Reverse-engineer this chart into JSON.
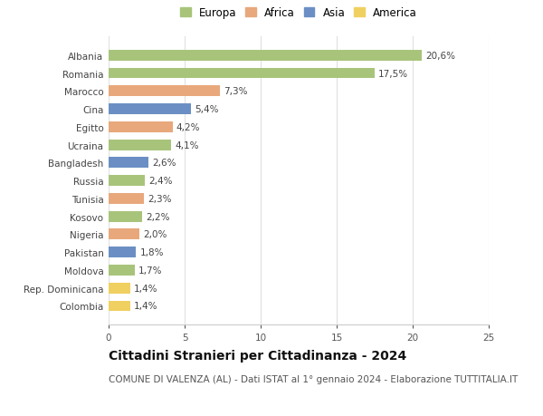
{
  "countries": [
    "Albania",
    "Romania",
    "Marocco",
    "Cina",
    "Egitto",
    "Ucraina",
    "Bangladesh",
    "Russia",
    "Tunisia",
    "Kosovo",
    "Nigeria",
    "Pakistan",
    "Moldova",
    "Rep. Dominicana",
    "Colombia"
  ],
  "values": [
    20.6,
    17.5,
    7.3,
    5.4,
    4.2,
    4.1,
    2.6,
    2.4,
    2.3,
    2.2,
    2.0,
    1.8,
    1.7,
    1.4,
    1.4
  ],
  "labels": [
    "20,6%",
    "17,5%",
    "7,3%",
    "5,4%",
    "4,2%",
    "4,1%",
    "2,6%",
    "2,4%",
    "2,3%",
    "2,2%",
    "2,0%",
    "1,8%",
    "1,7%",
    "1,4%",
    "1,4%"
  ],
  "regions": [
    "Europa",
    "Europa",
    "Africa",
    "Asia",
    "Africa",
    "Europa",
    "Asia",
    "Europa",
    "Africa",
    "Europa",
    "Africa",
    "Asia",
    "Europa",
    "America",
    "America"
  ],
  "colors": {
    "Europa": "#a8c47a",
    "Africa": "#e8a87c",
    "Asia": "#6b8fc4",
    "America": "#f0d060"
  },
  "legend_order": [
    "Europa",
    "Africa",
    "Asia",
    "America"
  ],
  "xlim": [
    0,
    25
  ],
  "xticks": [
    0,
    5,
    10,
    15,
    20,
    25
  ],
  "title": "Cittadini Stranieri per Cittadinanza - 2024",
  "subtitle": "COMUNE DI VALENZA (AL) - Dati ISTAT al 1° gennaio 2024 - Elaborazione TUTTITALIA.IT",
  "bg_color": "#ffffff",
  "grid_color": "#e0e0e0",
  "bar_height": 0.6,
  "title_fontsize": 10,
  "subtitle_fontsize": 7.5,
  "label_fontsize": 7.5,
  "tick_fontsize": 7.5,
  "legend_fontsize": 8.5
}
